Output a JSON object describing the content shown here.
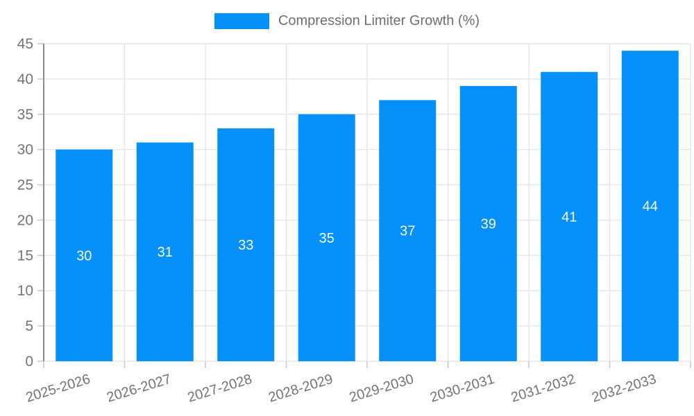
{
  "legend": {
    "label": "Compression Limiter Growth (%)",
    "swatch_color": "#0590fa"
  },
  "chart_data": {
    "type": "bar",
    "title": "Compression Limiter Growth (%)",
    "categories": [
      "2025-2026",
      "2026-2027",
      "2027-2028",
      "2028-2029",
      "2029-2030",
      "2030-2031",
      "2031-2032",
      "2032-2033"
    ],
    "values": [
      30,
      31,
      33,
      35,
      37,
      39,
      41,
      44
    ],
    "xlabel": "",
    "ylabel": "",
    "ylim": [
      0,
      45
    ],
    "ytick_step": 5,
    "ytick_labels": [
      "0",
      "5",
      "10",
      "15",
      "20",
      "25",
      "30",
      "35",
      "40",
      "45"
    ],
    "grid": true,
    "legend_position": "top",
    "value_labels_inside_bars": true,
    "x_label_rotation_deg": -17,
    "colors": {
      "bar": "#0590fa",
      "value_label": "#ffffff",
      "axis_label": "#737373",
      "grid_line": "#e6e6e6",
      "axis_line": "#8a8a8a",
      "tick_mark": "#c6c6c6",
      "background": "#ffffff"
    }
  }
}
